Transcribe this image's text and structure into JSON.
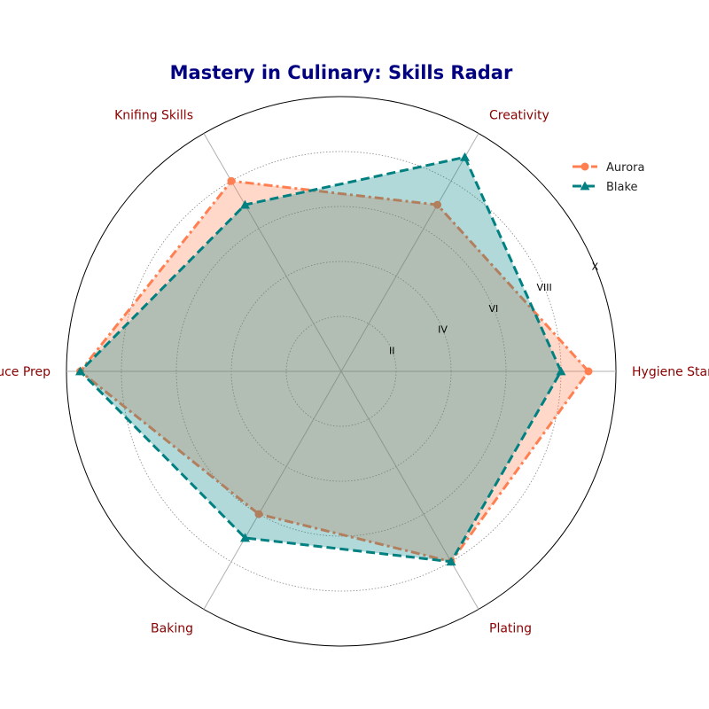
{
  "chart_data": {
    "type": "radar",
    "title": "Mastery in Culinary: Skills Radar",
    "categories": [
      "Hygiene Standards",
      "Creativity",
      "Knifing Skills",
      "Sauce Prep",
      "Baking",
      "Plating"
    ],
    "rlim": [
      0,
      10
    ],
    "radial_ticks": [
      2,
      4,
      6,
      8,
      10
    ],
    "radial_tick_labels": [
      "II",
      "IV",
      "VI",
      "VIII",
      "X"
    ],
    "series": [
      {
        "name": "Aurora",
        "values": [
          9,
          7,
          8,
          9.5,
          6,
          8
        ],
        "color": "#ff7f50",
        "line_style": "dash-dot",
        "marker": "circle"
      },
      {
        "name": "Blake",
        "values": [
          8,
          9,
          7,
          9.5,
          7,
          8
        ],
        "color": "#008080",
        "line_style": "dashed",
        "marker": "triangle"
      }
    ],
    "legend_position": "upper-right",
    "grid": true
  },
  "colors": {
    "title": "#000080",
    "category_labels": "#8b0000"
  }
}
